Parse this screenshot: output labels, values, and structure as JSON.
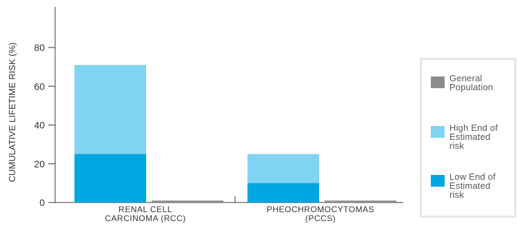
{
  "chart_data": {
    "type": "bar",
    "ylabel": "CUMULATIVE LIFETIME RISK (%)",
    "ylim": [
      0,
      100
    ],
    "yticks": [
      0,
      20,
      40,
      60,
      80
    ],
    "groups": [
      {
        "label": [
          "RENAL CELL",
          "CARCINOMA (RCC)"
        ],
        "stacked": {
          "low": 25,
          "high": 71
        },
        "general_population": 1
      },
      {
        "label": [
          "PHEOCHROMOCYTOMAS",
          "(PCCS)"
        ],
        "stacked": {
          "low": 10,
          "high": 25
        },
        "general_population": 1
      }
    ],
    "series": [
      {
        "key": "general_population",
        "name": [
          "General",
          "Population"
        ],
        "color": "#8c8c8c"
      },
      {
        "key": "high",
        "name": [
          "High End of",
          "Estimated",
          "risk"
        ],
        "color": "#80d3f2"
      },
      {
        "key": "low",
        "name": [
          "Low End of",
          "Estimated",
          "risk"
        ],
        "color": "#00a6e0"
      }
    ],
    "legend_position": "right",
    "grid": false
  },
  "colors": {
    "axis": "#333333",
    "legend_border": "#e6e6e6",
    "text": "#333333"
  }
}
